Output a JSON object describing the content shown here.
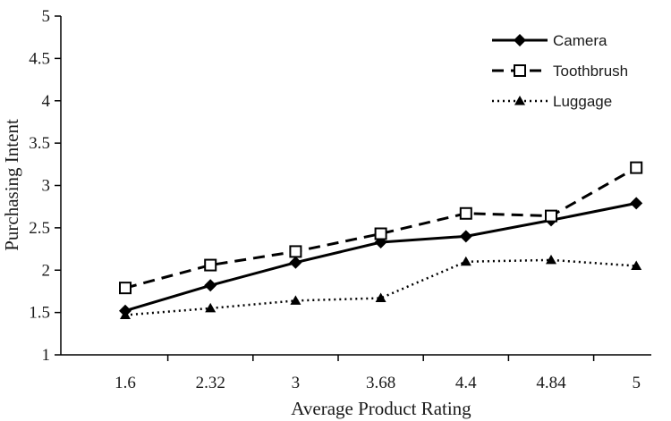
{
  "chart_data": {
    "type": "line",
    "xlabel": "Average Product Rating",
    "ylabel": "Purchasing Intent",
    "ylim": [
      1,
      5
    ],
    "grid": false,
    "legend_position": "top-right",
    "categories": [
      "1.6",
      "2.32",
      "3",
      "3.68",
      "4.4",
      "4.84",
      "5"
    ],
    "yticks": [
      "1",
      "1.5",
      "2",
      "2.5",
      "3",
      "3.5",
      "4",
      "4.5",
      "5"
    ],
    "series": [
      {
        "name": "Camera",
        "values": [
          1.52,
          1.82,
          2.09,
          2.33,
          2.4,
          2.59,
          2.79
        ],
        "line": "solid",
        "marker": "diamond",
        "color": "#000000"
      },
      {
        "name": "Toothbrush",
        "values": [
          1.79,
          2.06,
          2.22,
          2.43,
          2.67,
          2.64,
          3.21
        ],
        "line": "dashed",
        "marker": "square-open",
        "color": "#000000"
      },
      {
        "name": "Luggage",
        "values": [
          1.47,
          1.55,
          1.64,
          1.67,
          2.1,
          2.12,
          2.05
        ],
        "line": "dotted",
        "marker": "triangle",
        "color": "#000000"
      }
    ]
  }
}
